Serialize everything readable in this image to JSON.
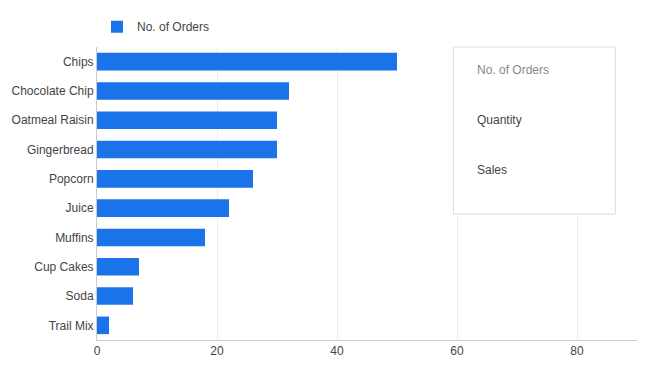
{
  "chart_data": {
    "type": "bar",
    "orientation": "horizontal",
    "categories": [
      "Trail Mix",
      "Soda",
      "Cup Cakes",
      "Muffins",
      "Juice",
      "Popcorn",
      "Gingerbread",
      "Oatmeal Raisin",
      "Chocolate Chip",
      "Chips"
    ],
    "series": [
      {
        "name": "No. of Orders",
        "color": "#1a73e8",
        "values": [
          2,
          6,
          7,
          18,
          22,
          26,
          30,
          30,
          32,
          50
        ]
      }
    ],
    "xlim": [
      0,
      90
    ],
    "xticks": [
      0,
      20,
      40,
      60,
      80
    ],
    "grid": true,
    "legend": "upper left",
    "annotations": [
      "No. of Orders",
      "Quantity",
      "Sales"
    ]
  }
}
